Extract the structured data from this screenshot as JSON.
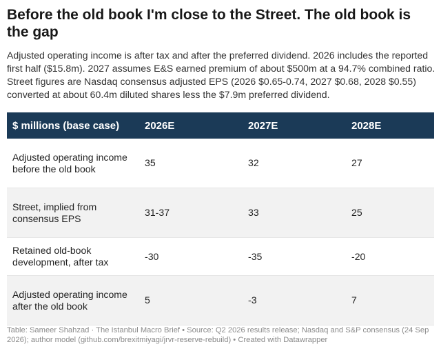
{
  "title": "Before the old book I'm close to the Street. The old book is the gap",
  "subtitle": "Adjusted operating income is after tax and after the preferred dividend. 2026 includes the reported first half ($15.8m). 2027 assumes E&S earned premium of about $500m at a 94.7% combined ratio. Street figures are Nasdaq consensus adjusted EPS (2026 $0.65-0.74, 2027 $0.68, 2028 $0.55) converted at about 60.4m diluted shares less the $7.9m preferred dividend.",
  "table": {
    "headers": [
      "$ millions (base case)",
      "2026E",
      "2027E",
      "2028E"
    ],
    "rows": [
      [
        "Adjusted operating income before the old book",
        "35",
        "32",
        "27"
      ],
      [
        "Street, implied from consensus EPS",
        "31-37",
        "33",
        "25"
      ],
      [
        "Retained old-book development, after tax",
        "-30",
        "-35",
        "-20"
      ],
      [
        "Adjusted operating income after the old book",
        "5",
        "-3",
        "7"
      ]
    ],
    "header_color": "#1b3a57",
    "stripe_color": "#f2f2f2"
  },
  "footer": "Table: Sameer Shahzad · The Istanbul Macro Brief • Source: Q2 2026 results release; Nasdaq and S&P consensus (24 Sep 2026); author model (github.com/brexitmiyagi/jrvr-reserve-rebuild) • Created with Datawrapper"
}
